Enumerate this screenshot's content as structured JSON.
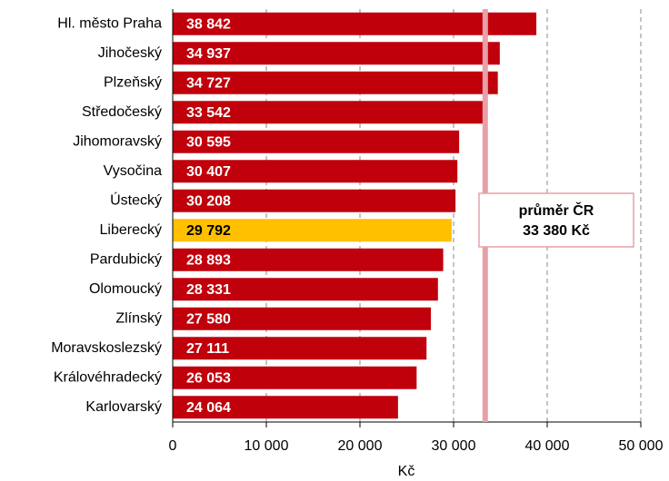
{
  "chart_data": {
    "type": "bar",
    "orientation": "horizontal",
    "categories": [
      "Hl. město Praha",
      "Jihočeský",
      "Plzeňský",
      "Středočeský",
      "Jihomoravský",
      "Vysočina",
      "Ústecký",
      "Liberecký",
      "Pardubický",
      "Olomoucký",
      "Zlínský",
      "Moravskoslezský",
      "Královéhradecký",
      "Karlovarský"
    ],
    "values": [
      38842,
      34937,
      34727,
      33542,
      30595,
      30407,
      30208,
      29792,
      28893,
      28331,
      27580,
      27111,
      26053,
      24064
    ],
    "value_labels": [
      "38 842",
      "34 937",
      "34 727",
      "33 542",
      "30 595",
      "30 407",
      "30 208",
      "29 792",
      "28 893",
      "28 331",
      "27 580",
      "27 111",
      "26 053",
      "24 064"
    ],
    "colors": [
      "#c0000b",
      "#c0000b",
      "#c0000b",
      "#c0000b",
      "#c0000b",
      "#c0000b",
      "#c0000b",
      "#ffc000",
      "#c0000b",
      "#c0000b",
      "#c0000b",
      "#c0000b",
      "#c0000b",
      "#c0000b"
    ],
    "xlim": [
      0,
      50000
    ],
    "xticks": [
      0,
      {
        "value": 10000,
        "label": "10 000"
      },
      {
        "value": 20000,
        "label": "20 000"
      },
      {
        "value": 30000,
        "label": "30 000"
      },
      {
        "value": 40000,
        "label": "40 000"
      },
      {
        "value": 50000,
        "label": "50 000"
      }
    ],
    "xlabel": "Kč",
    "grid": true,
    "reference_line": {
      "value": 33380,
      "color": "#e8a0a8",
      "label": "průměr ČR",
      "value_label": "33 380 Kč"
    }
  }
}
